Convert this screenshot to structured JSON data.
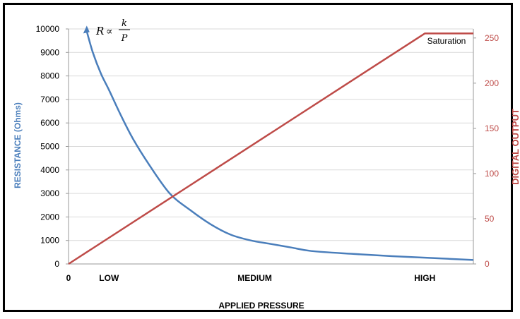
{
  "chart_data": {
    "type": "line",
    "title": "",
    "xlabel": "APPLIED PRESSURE",
    "ylabel_left": "RESISTANCE (Ohms)",
    "ylabel_right": "DIGITAL OUTPUT",
    "x_tick_labels": [
      "0",
      "LOW",
      "MEDIUM",
      "HIGH"
    ],
    "x_tick_positions": [
      0,
      1,
      4.6,
      8.8
    ],
    "xlim": [
      0,
      10
    ],
    "ylim_left": [
      0,
      10000
    ],
    "ylim_right": [
      0,
      260
    ],
    "yticks_left": [
      0,
      1000,
      2000,
      3000,
      4000,
      5000,
      6000,
      7000,
      8000,
      9000,
      10000
    ],
    "yticks_right": [
      0,
      50,
      100,
      150,
      200,
      250
    ],
    "grid": "horizontal",
    "colors": {
      "resistance": "#4a7ebb",
      "digital": "#be4b48"
    },
    "series": [
      {
        "name": "Resistance",
        "axis": "left",
        "x": [
          0.45,
          0.6,
          0.8,
          1.0,
          1.3,
          1.6,
          2.0,
          2.5,
          3.0,
          3.5,
          4.0,
          4.5,
          5.0,
          5.5,
          6.0,
          7.0,
          8.0,
          9.0,
          10.0
        ],
        "values": [
          9900,
          9000,
          8100,
          7400,
          6300,
          5300,
          4200,
          3000,
          2300,
          1700,
          1250,
          1000,
          850,
          700,
          550,
          430,
          330,
          250,
          170
        ]
      },
      {
        "name": "Digital Output",
        "axis": "right",
        "x": [
          0,
          8.8,
          10.0
        ],
        "values": [
          0,
          255,
          255
        ]
      }
    ],
    "annotations": [
      {
        "text": "Saturation",
        "x": 9.3,
        "y_right": 250
      }
    ],
    "formula": {
      "lhs": "R",
      "op": "∝",
      "num": "k",
      "den": "P"
    }
  }
}
